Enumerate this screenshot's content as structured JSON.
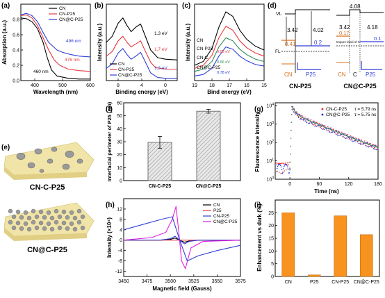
{
  "panels": {
    "a": {
      "label": "(a)",
      "xlabel": "Wavelength (nm)",
      "ylabel": "Absorption (a.u.)"
    },
    "b": {
      "label": "(b)",
      "xlabel": "Binding energy (eV)",
      "ylabel": "Intensity (a.u.)"
    },
    "c": {
      "label": "(c)",
      "xlabel": "Bind energy (eV)",
      "ylabel": "Intensity (a.u.)"
    },
    "d": {
      "label": "(d)"
    },
    "e": {
      "label": "(e)"
    },
    "f": {
      "label": "(f)"
    },
    "g": {
      "label": "(g)"
    },
    "h": {
      "label": "(h)"
    },
    "i": {
      "label": "(i)"
    }
  },
  "colors": {
    "cn": "#000000",
    "p25": "#e8383d",
    "cnc": "#2e8b57",
    "cnat": "#2f3fd6",
    "magenta": "#e020e0",
    "orange": "#f7931e"
  },
  "chart_data": [
    {
      "id": "a",
      "type": "line",
      "xlabel": "Wavelength (nm)",
      "ylabel": "Absorption (a.u.)",
      "xlim": [
        350,
        600
      ],
      "ylim": [
        0,
        1.0
      ],
      "xticks": [
        400,
        500,
        600
      ],
      "yticks": [
        0.0,
        0.2,
        0.4,
        0.6,
        0.8
      ],
      "series": [
        {
          "name": "CN",
          "x": [
            350,
            370,
            390,
            410,
            430,
            445,
            460,
            480,
            520,
            560,
            600
          ],
          "y": [
            0.82,
            0.81,
            0.77,
            0.68,
            0.5,
            0.3,
            0.14,
            0.06,
            0.03,
            0.02,
            0.02
          ]
        },
        {
          "name": "CN-P25",
          "x": [
            350,
            370,
            390,
            410,
            430,
            450,
            470,
            490,
            520,
            560,
            600
          ],
          "y": [
            0.85,
            0.86,
            0.82,
            0.72,
            0.56,
            0.4,
            0.27,
            0.2,
            0.15,
            0.13,
            0.12
          ]
        },
        {
          "name": "CN@C-P25",
          "x": [
            350,
            370,
            390,
            410,
            430,
            450,
            480,
            500,
            530,
            560,
            600
          ],
          "y": [
            0.86,
            0.88,
            0.85,
            0.77,
            0.63,
            0.5,
            0.4,
            0.37,
            0.34,
            0.32,
            0.31
          ]
        }
      ],
      "annotations": [
        "496 nm",
        "476 nm",
        "460 nm"
      ]
    },
    {
      "id": "b",
      "type": "line",
      "xlabel": "Binding energy (eV)",
      "ylabel": "Intensity (a.u.)",
      "xlim": [
        10,
        -2
      ],
      "xticks": [
        8,
        4,
        0
      ],
      "series": [
        {
          "name": "CN",
          "x": [
            10,
            9,
            8,
            7.2,
            6.5,
            5.8,
            5,
            4.2,
            3.5,
            2.5,
            1.3,
            0,
            -2
          ],
          "y": [
            0.5,
            0.58,
            0.75,
            0.82,
            0.72,
            0.64,
            0.7,
            0.74,
            0.6,
            0.4,
            0.3,
            0.28,
            0.27
          ]
        },
        {
          "name": "CN-P25",
          "x": [
            10,
            9,
            8,
            7.2,
            6.5,
            5.8,
            5,
            4.2,
            3.5,
            2.5,
            1.7,
            0,
            -2
          ],
          "y": [
            0.32,
            0.38,
            0.52,
            0.58,
            0.5,
            0.44,
            0.48,
            0.52,
            0.4,
            0.24,
            0.17,
            0.15,
            0.15
          ]
        },
        {
          "name": "CN@C-P25",
          "x": [
            10,
            9,
            8,
            7.2,
            6.5,
            5.8,
            5,
            4.2,
            3.5,
            2.5,
            1.3,
            0,
            -2
          ],
          "y": [
            0.16,
            0.22,
            0.36,
            0.42,
            0.34,
            0.28,
            0.32,
            0.37,
            0.26,
            0.1,
            0.04,
            0.03,
            0.03
          ]
        }
      ],
      "annotations": [
        "1.3 eV",
        "1.7 eV",
        "1.3 eV"
      ]
    },
    {
      "id": "c",
      "type": "line",
      "xlabel": "Bind energy (eV)",
      "ylabel": "Intensity (a.u.)",
      "xlim": [
        19,
        15
      ],
      "xticks": [
        19,
        18,
        17,
        16,
        15
      ],
      "series": [
        {
          "name": "CN",
          "x": [
            19,
            18.5,
            18,
            17.6,
            17.2,
            16.8,
            16.4,
            16,
            15.5,
            15
          ],
          "y": [
            0.2,
            0.25,
            0.42,
            0.7,
            0.9,
            0.84,
            0.66,
            0.54,
            0.45,
            0.4
          ]
        },
        {
          "name": "CN-P25",
          "x": [
            19,
            18.5,
            18,
            17.6,
            17.2,
            16.8,
            16.4,
            16,
            15.5,
            15
          ],
          "y": [
            0.16,
            0.2,
            0.33,
            0.56,
            0.71,
            0.66,
            0.52,
            0.43,
            0.36,
            0.32
          ]
        },
        {
          "name": "CN-C",
          "x": [
            19,
            18.5,
            18,
            17.6,
            17.2,
            16.8,
            16.4,
            16,
            15.5,
            15
          ],
          "y": [
            0.12,
            0.15,
            0.25,
            0.44,
            0.56,
            0.52,
            0.41,
            0.34,
            0.28,
            0.25
          ]
        },
        {
          "name": "CN@C-P25",
          "x": [
            19,
            18.5,
            18,
            17.6,
            17.2,
            16.8,
            16.4,
            16,
            15.5,
            15
          ],
          "y": [
            0.06,
            0.08,
            0.16,
            0.32,
            0.44,
            0.41,
            0.32,
            0.26,
            0.21,
            0.19
          ]
        }
      ],
      "annotations": [
        "0.65 eV",
        "0.66 eV",
        "0.78 eV"
      ]
    },
    {
      "id": "f",
      "type": "bar",
      "ylabel": "Interfacial perimeter of P25 (nm)",
      "categories": [
        "CN-C-P25",
        "CN@C-P25"
      ],
      "values": [
        29.5,
        53.5
      ],
      "errors": [
        4.5,
        1.5
      ],
      "ylim": [
        0,
        60
      ],
      "yticks": [
        0,
        10,
        20,
        30,
        40,
        50,
        60
      ]
    },
    {
      "id": "g",
      "type": "scatter",
      "xlabel": "Time (ns)",
      "ylabel": "Fluorescence intensity",
      "xlim": [
        -30,
        180
      ],
      "xticks": [
        0,
        60,
        120,
        180
      ],
      "yscale": "log",
      "ylim": [
        1,
        10000
      ],
      "yticks": [
        "10^0",
        "10^1",
        "10^2",
        "10^3",
        "10^4"
      ],
      "series": [
        {
          "name": "CN-C-P25",
          "tau": "τ = 5.79 ns"
        },
        {
          "name": "CN@C-P25",
          "tau": "τ = 5.75 ns"
        }
      ]
    },
    {
      "id": "h",
      "type": "line",
      "xlabel": "Magnetic field (Gauss)",
      "ylabel": "Intensity (×10⁴)",
      "xlim": [
        3450,
        3575
      ],
      "xticks": [
        3450,
        3475,
        3500,
        3525,
        3550,
        3575
      ],
      "ylim": [
        -14,
        16
      ],
      "yticks": [
        -12,
        -8,
        -4,
        0,
        4,
        8,
        12
      ],
      "series": [
        {
          "name": "CN",
          "x": [
            3450,
            3490,
            3500,
            3505,
            3510,
            3515,
            3520,
            3530,
            3575
          ],
          "y": [
            0,
            0,
            0.3,
            0.8,
            0,
            -0.8,
            -0.3,
            0,
            0
          ]
        },
        {
          "name": "P25",
          "x": [
            3450,
            3575
          ],
          "y": [
            0,
            0
          ]
        },
        {
          "name": "CN-P25",
          "x": [
            3450,
            3490,
            3500,
            3505,
            3510,
            3515,
            3520,
            3530,
            3575
          ],
          "y": [
            0,
            0.1,
            0.6,
            1.5,
            0,
            -1.4,
            -0.5,
            0,
            0
          ]
        },
        {
          "name": "CN@C-P25",
          "x": [
            3450,
            3480,
            3495,
            3502,
            3506,
            3509,
            3512,
            3516,
            3522,
            3535,
            3575
          ],
          "y": [
            0,
            1,
            3,
            8,
            13,
            3,
            -8,
            -11,
            -3,
            -0.5,
            0
          ]
        },
        {
          "name": "blue",
          "x": [
            3450,
            3470,
            3490,
            3502,
            3510,
            3518,
            3530,
            3550,
            3575
          ],
          "y": [
            4,
            6,
            8,
            9,
            0,
            -8,
            -6,
            -4,
            -2
          ]
        }
      ],
      "legend": [
        "CN",
        "P25",
        "CN-P25",
        "CN@C-P25"
      ]
    },
    {
      "id": "i",
      "type": "bar",
      "ylabel": "Enhancement vs dark (%)",
      "categories": [
        "CN",
        "P25",
        "CN-P25",
        "CN@C-P25"
      ],
      "values": [
        25,
        0.6,
        23.8,
        16.4
      ],
      "ylim": [
        0,
        30
      ],
      "yticks": [
        0,
        5,
        10,
        15,
        20,
        25
      ]
    }
  ],
  "band_diagram": {
    "vl": "VL",
    "fl": "FL",
    "left": {
      "title": "CN-P25",
      "cn_label": "CN",
      "p25_label": "P25",
      "cn_wf": "3.42",
      "p25_wf": "4.02",
      "cn_gap": "0.41",
      "p25_gap": "0.2"
    },
    "right": {
      "title": "CN@C-P25",
      "cn_label": "CN",
      "c_label": "C",
      "p25_label": "P25",
      "c_top": "4.08",
      "cn_wf": "3.42",
      "p25_wf": "4.18",
      "cn_gap": "0.17",
      "p25_gap": "0.1",
      "impurity": "Impure level of C"
    }
  },
  "models": {
    "top": "CN-C-P25",
    "bottom": "CN@C-P25"
  }
}
